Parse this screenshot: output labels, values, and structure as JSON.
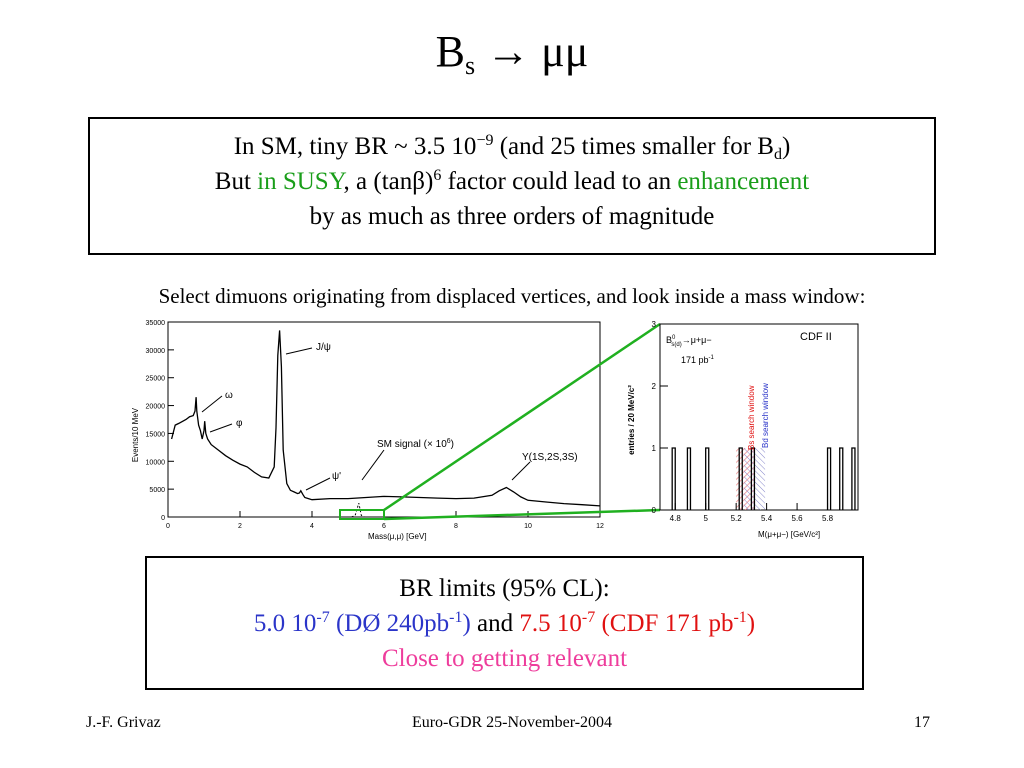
{
  "colors": {
    "green": "#1a9e1a",
    "blue": "#2b35c9",
    "red": "#e01111",
    "pink": "#ee3d9c",
    "window_green": "#20b020"
  },
  "title": {
    "b": "B",
    "sub": "s",
    "rest": " → μμ"
  },
  "box1": {
    "line1_a": "In SM, tiny BR ~ 3.5 10",
    "line1_exp": "−9",
    "line1_b": " (and 25 times smaller for B",
    "line1_sub": "d",
    "line1_c": ")",
    "line2_a": "But ",
    "line2_susy": "in SUSY",
    "line2_b": ", a (tanβ)",
    "line2_exp": "6",
    "line2_c": " factor could lead to an ",
    "line2_enh": "enhancement",
    "line3": "by as much as three orders of magnitude"
  },
  "select_text": "Select dimuons originating from displaced vertices, and look inside a mass window:",
  "box2": {
    "line1": "BR limits (95% CL):",
    "d0_a": "5.0 10",
    "d0_exp": "-7",
    "d0_b": " (DØ 240pb",
    "d0_exp2": "-1",
    "d0_c": ")",
    "and": " and ",
    "cdf_a": "7.5 10",
    "cdf_exp": "-7",
    "cdf_b": " (CDF 171 pb",
    "cdf_exp2": "-1",
    "cdf_c": ")",
    "line3": "Close to getting relevant"
  },
  "footer": {
    "left": "J.-F. Grivaz",
    "center": "Euro-GDR 25-November-2004",
    "right": "17"
  },
  "chart_data": [
    {
      "type": "line",
      "xlabel": "Mass(μ,μ)  [GeV]",
      "ylabel": "Events/10 MeV",
      "xlim": [
        0,
        12
      ],
      "ylim": [
        0,
        35000
      ],
      "x_ticks": [
        "0",
        "2",
        "4",
        "6",
        "8",
        "10",
        "12"
      ],
      "y_ticks": [
        "0",
        "5000",
        "10000",
        "15000",
        "20000",
        "25000",
        "30000",
        "35000"
      ],
      "annotations": [
        "J/ψ",
        "ω",
        "φ",
        "ψ'",
        "SM signal (× 10",
        "Y(1S,2S,3S)"
      ],
      "signal_exp": "6",
      "series": [
        {
          "x": [
            0.1,
            0.2,
            0.3,
            0.5,
            0.6,
            0.7,
            0.75,
            0.78,
            0.8,
            0.85,
            0.9,
            0.95,
            1.0,
            1.02,
            1.05,
            1.1,
            1.2,
            1.4,
            1.6,
            1.8,
            2.0,
            2.2,
            2.4,
            2.6,
            2.8,
            2.95,
            3.0,
            3.05,
            3.1,
            3.15,
            3.2,
            3.3,
            3.4,
            3.5,
            3.6,
            3.65,
            3.69,
            3.75,
            3.8,
            3.9,
            4.0,
            4.5,
            5.0,
            5.5,
            6.0,
            6.5,
            7.0,
            7.5,
            8.0,
            8.5,
            9.0,
            9.2,
            9.4,
            9.6,
            9.8,
            10.0,
            10.5,
            11.0,
            11.5,
            12.0
          ],
          "y": [
            14000,
            16500,
            16800,
            17500,
            18000,
            18200,
            19000,
            21500,
            19000,
            16500,
            15500,
            14000,
            15500,
            17200,
            15000,
            14000,
            13000,
            12000,
            11000,
            10200,
            9500,
            9000,
            8000,
            7200,
            7000,
            9000,
            16000,
            29000,
            33500,
            27000,
            12000,
            6000,
            4800,
            4500,
            4200,
            4300,
            4700,
            4000,
            3500,
            3300,
            3100,
            3300,
            3300,
            3500,
            3700,
            3600,
            3500,
            3400,
            3300,
            3400,
            3900,
            4700,
            5300,
            4500,
            3600,
            3000,
            2700,
            2400,
            2200,
            2000
          ]
        }
      ]
    },
    {
      "type": "bar",
      "xlabel": "M(μ+μ−)  [GeV/c²]",
      "ylabel": "entries / 20 MeV/c²",
      "xlim": [
        4.7,
        6.0
      ],
      "ylim": [
        0,
        3
      ],
      "x_ticks": [
        "4.8",
        "5",
        "5.2",
        "5.4",
        "5.6",
        "5.8"
      ],
      "y_ticks": [
        "0",
        "1",
        "2",
        "3"
      ],
      "legend_line1": "B",
      "legend_sup": "0",
      "legend_sub": "s(d)",
      "legend_rest": "→μ+μ−",
      "luminosity": "171 pb",
      "lumi_exp": "-1",
      "experiment": "CDF II",
      "window_bs": "Bs search window",
      "window_bd": "Bd search window",
      "window_bs_range": [
        5.2,
        5.32
      ],
      "window_bd_range": [
        5.25,
        5.39
      ],
      "entries_x": [
        4.79,
        4.89,
        5.01,
        5.23,
        5.31,
        5.81,
        5.89,
        5.97
      ],
      "entries_y": [
        1,
        1,
        1,
        1,
        1,
        1,
        1,
        1
      ]
    }
  ]
}
